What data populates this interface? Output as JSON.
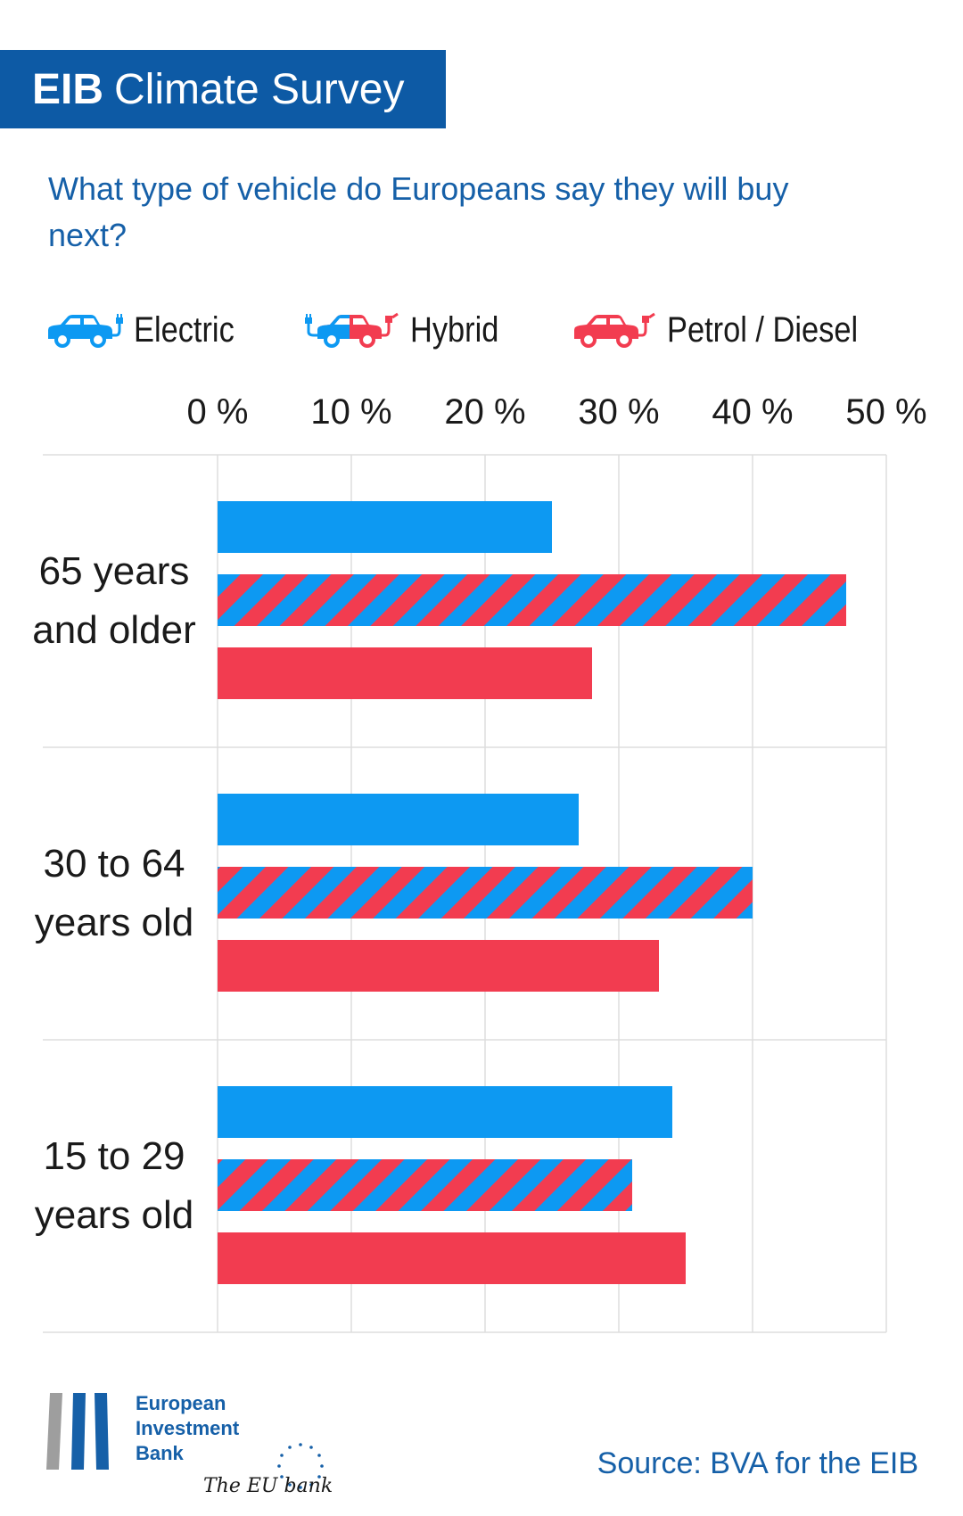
{
  "header": {
    "brand": "EIB",
    "name": "Climate Survey"
  },
  "question": "What type of vehicle do Europeans say they will buy next?",
  "legend": [
    {
      "label": "Electric",
      "icon": "electric-car-icon"
    },
    {
      "label": "Hybrid",
      "icon": "hybrid-car-icon"
    },
    {
      "label": "Petrol / Diesel",
      "icon": "petrol-car-icon"
    }
  ],
  "colors": {
    "electric": "#0d99f2",
    "petrol": "#f23c50",
    "brand": "#0d5aa5",
    "text_blue": "#1660a8",
    "grid": "#dddddd"
  },
  "chart_data": {
    "type": "bar",
    "orientation": "horizontal",
    "categories": [
      "65 years\nand older",
      "30 to 64\nyears old",
      "15 to 29\nyears old"
    ],
    "series": [
      {
        "name": "Electric",
        "values": [
          25,
          27,
          34
        ]
      },
      {
        "name": "Hybrid",
        "values": [
          47,
          40,
          31
        ]
      },
      {
        "name": "Petrol / Diesel",
        "values": [
          28,
          33,
          35
        ]
      }
    ],
    "xticks": [
      "0 %",
      "10 %",
      "20 %",
      "30 %",
      "40 %",
      "50 %"
    ],
    "xlim": [
      0,
      50
    ],
    "grid": true,
    "legend_position": "top"
  },
  "footer": {
    "logo_lines": [
      "European",
      "Investment",
      "Bank"
    ],
    "tagline": "The EU bank",
    "source": "Source: BVA for the EIB"
  }
}
